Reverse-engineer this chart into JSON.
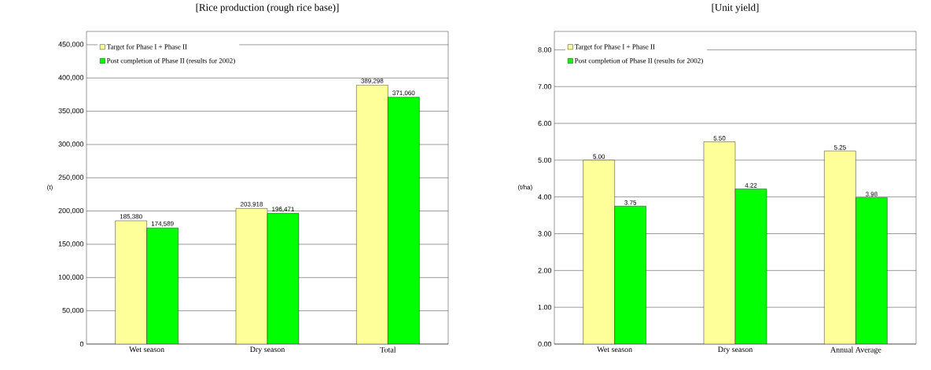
{
  "chart_data": [
    {
      "type": "bar",
      "title": "[Rice production (rough rice base)]",
      "ylabel": "(t)",
      "categories": [
        "Wet season",
        "Dry season",
        "Total"
      ],
      "series": [
        {
          "name": "Target for Phase I + Phase II",
          "color": "#ffff99",
          "values": [
            185380,
            203918,
            389298
          ],
          "value_labels": [
            "185,380",
            "203,918",
            "389,298"
          ]
        },
        {
          "name": "Post completion of Phase II (results for 2002)",
          "color": "#00ff00",
          "values": [
            174589,
            196471,
            371060
          ],
          "value_labels": [
            "174,589",
            "196,471",
            "371,060"
          ]
        }
      ],
      "ylim": [
        0,
        470000
      ],
      "yticks": [
        0,
        {
          "value": 50000,
          "label": "50,000"
        },
        {
          "value": 100000,
          "label": "100,000"
        },
        {
          "value": 150000,
          "label": "150,000"
        },
        {
          "value": 200000,
          "label": "200,000"
        },
        {
          "value": 250000,
          "label": "250,000"
        },
        {
          "value": 300000,
          "label": "300,000"
        },
        {
          "value": 350000,
          "label": "350,000"
        },
        {
          "value": 400000,
          "label": "400,000"
        },
        {
          "value": 450000,
          "label": "450,000"
        }
      ],
      "grid": "y",
      "legend": "top left"
    },
    {
      "type": "bar",
      "title": "[Unit yield]",
      "ylabel": "(t/ha)",
      "categories": [
        "Wet season",
        "Dry season",
        "Annual Average"
      ],
      "series": [
        {
          "name": "Target for Phase I + Phase II",
          "color": "#ffff99",
          "values": [
            5.0,
            5.5,
            5.25
          ],
          "value_labels": [
            "5.00",
            "5.50",
            "5.25"
          ]
        },
        {
          "name": "Post completion of Phase II (results for 2002)",
          "color": "#00ff00",
          "values": [
            3.75,
            4.22,
            3.98
          ],
          "value_labels": [
            "3.75",
            "4.22",
            "3.98"
          ]
        }
      ],
      "ylim": [
        0,
        8.5
      ],
      "yticks": [
        {
          "value": 0,
          "label": "0.00"
        },
        {
          "value": 1,
          "label": "1.00"
        },
        {
          "value": 2,
          "label": "2.00"
        },
        {
          "value": 3,
          "label": "3.00"
        },
        {
          "value": 4,
          "label": "4.00"
        },
        {
          "value": 5,
          "label": "5.00"
        },
        {
          "value": 6,
          "label": "6.00"
        },
        {
          "value": 7,
          "label": "7.00"
        },
        {
          "value": 8,
          "label": "8.00"
        }
      ],
      "grid": "y",
      "legend": "top left"
    }
  ]
}
